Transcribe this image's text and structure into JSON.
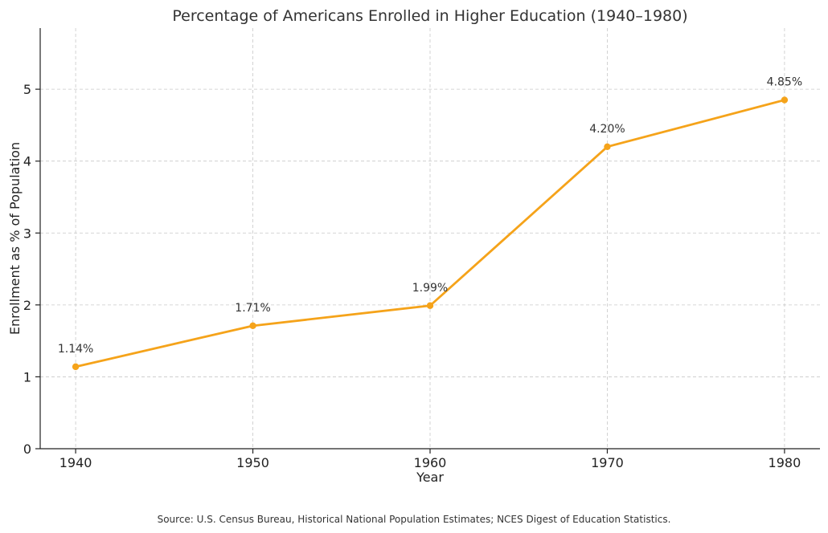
{
  "chart_data": {
    "type": "line",
    "title": "Percentage of Americans Enrolled in Higher Education (1940–1980)",
    "xlabel": "Year",
    "ylabel": "Enrollment as % of Population",
    "x": [
      1940,
      1950,
      1960,
      1970,
      1980
    ],
    "series": [
      {
        "values": [
          1.14,
          1.71,
          1.99,
          4.2,
          4.85
        ],
        "color": "#f5a31a"
      }
    ],
    "data_labels": [
      "1.14%",
      "1.71%",
      "1.99%",
      "4.20%",
      "4.85%"
    ],
    "x_ticks": [
      1940,
      1950,
      1960,
      1970,
      1980
    ],
    "x_tick_labels": [
      "1940",
      "1950",
      "1960",
      "1970",
      "1980"
    ],
    "y_ticks": [
      0,
      1,
      2,
      3,
      4,
      5
    ],
    "y_tick_labels": [
      "0",
      "1",
      "2",
      "3",
      "4",
      "5"
    ],
    "xlim": [
      1938,
      1982
    ],
    "ylim": [
      0,
      5.85
    ],
    "grid": true,
    "legend": false,
    "source": "Source: U.S. Census Bureau, Historical National Population Estimates; NCES Digest of Education Statistics."
  }
}
